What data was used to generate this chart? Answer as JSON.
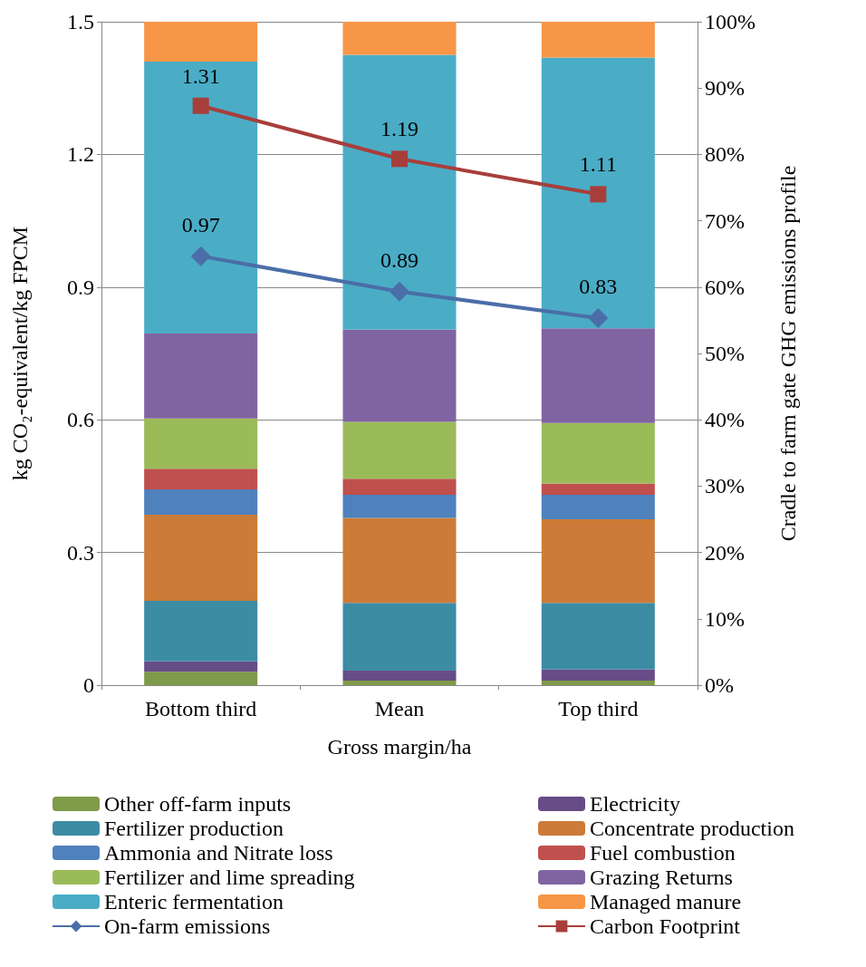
{
  "chart_data": {
    "type": "bar",
    "stacked": true,
    "xlabel": "Gross margin/ha",
    "ylabel": "kg CO₂-equivalent/kg FPCM",
    "y2label": "Cradle to farm gate GHG emissions profile",
    "categories": [
      "Bottom third",
      "Mean",
      "Top third"
    ],
    "ylim": [
      0,
      1.5
    ],
    "yticks": [
      0,
      0.3,
      0.6,
      0.9,
      1.2,
      1.5
    ],
    "y2lim": [
      0,
      100
    ],
    "y2ticks": [
      {
        "value": 0,
        "label": "0%"
      },
      {
        "value": 10,
        "label": "10%"
      },
      {
        "value": 20,
        "label": "20%"
      },
      {
        "value": 30,
        "label": "30%"
      },
      {
        "value": 40,
        "label": "40%"
      },
      {
        "value": 50,
        "label": "50%"
      },
      {
        "value": 60,
        "label": "60%"
      },
      {
        "value": 70,
        "label": "70%"
      },
      {
        "value": 80,
        "label": "80%"
      },
      {
        "value": 90,
        "label": "90%"
      },
      {
        "value": 100,
        "label": "100%"
      }
    ],
    "grid": "y",
    "legend": "bottom",
    "series": [
      {
        "name": "Other off-farm inputs",
        "color": "#7f9a48",
        "axis": "y2",
        "values": [
          2.0,
          0.7,
          0.7
        ]
      },
      {
        "name": "Electricity",
        "color": "#664d86",
        "axis": "y2",
        "values": [
          1.6,
          1.5,
          1.7
        ]
      },
      {
        "name": "Fertilizer production",
        "color": "#3c8ca4",
        "axis": "y2",
        "values": [
          9.1,
          10.2,
          10.0
        ]
      },
      {
        "name": "Concentrate production",
        "color": "#cc7b38",
        "axis": "y2",
        "values": [
          13.0,
          12.8,
          12.6
        ]
      },
      {
        "name": "Ammonia and Nitrate loss",
        "color": "#4f81bd",
        "axis": "y2",
        "values": [
          3.8,
          3.5,
          3.7
        ]
      },
      {
        "name": "Fuel combustion",
        "color": "#c0504d",
        "axis": "y2",
        "values": [
          3.1,
          2.4,
          1.7
        ]
      },
      {
        "name": "Fertilizer and lime spreading",
        "color": "#9bbb59",
        "axis": "y2",
        "values": [
          7.6,
          8.6,
          9.1
        ]
      },
      {
        "name": "Grazing Returns",
        "color": "#8064a2",
        "axis": "y2",
        "values": [
          12.8,
          13.9,
          14.3
        ]
      },
      {
        "name": "Enteric fermentation",
        "color": "#4bacc6",
        "axis": "y2",
        "values": [
          41.0,
          41.4,
          40.8
        ]
      },
      {
        "name": "Managed manure",
        "color": "#f79646",
        "axis": "y2",
        "values": [
          6.0,
          5.0,
          5.4
        ]
      },
      {
        "name": "On-farm emissions",
        "type": "line",
        "color": "#4a6ea8",
        "marker": "diamond",
        "data_labels": true,
        "values": [
          0.97,
          0.89,
          0.83
        ]
      },
      {
        "name": "Carbon Footprint",
        "type": "line",
        "color": "#a83e3b",
        "marker": "square",
        "data_labels": true,
        "values": [
          1.31,
          1.19,
          1.11
        ]
      }
    ]
  }
}
